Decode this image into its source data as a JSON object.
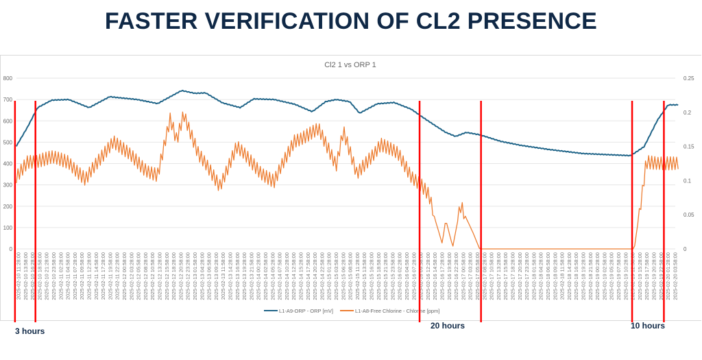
{
  "slide": {
    "title": "FASTER VERIFICATION OF CL2 PRESENCE",
    "annotations": [
      "3 hours",
      "20 hours",
      "10 hours"
    ],
    "marker_color": "#ff0000"
  },
  "chart_data": {
    "type": "line",
    "title": "Cl2 1 vs ORP 1",
    "xlabel": "",
    "ylabel_left": "",
    "ylabel_right": "",
    "ylim_left": [
      0,
      800
    ],
    "yticks_left": [
      "0",
      "100",
      "200",
      "300",
      "400",
      "500",
      "600",
      "700",
      "800"
    ],
    "ylim_right": [
      0,
      0.25
    ],
    "yticks_right": [
      "0",
      "0.05",
      "0.1",
      "0.15",
      "0.2",
      "0.25"
    ],
    "grid": true,
    "legend_position": "bottom",
    "x_labels": [
      "2025-02-10 11:28:00",
      "2025-02-10 13:58:00",
      "2025-02-10 16:28:00",
      "2025-02-10 18:58:00",
      "2025-02-10 21:28:00",
      "2025-02-10 23:58:00",
      "2025-02-11 02:28:00",
      "2025-02-11 04:58:00",
      "2025-02-11 07:28:00",
      "2025-02-11 09:58:00",
      "2025-02-11 12:28:00",
      "2025-02-11 14:58:00",
      "2025-02-11 17:28:00",
      "2025-02-11 19:58:00",
      "2025-02-11 22:28:00",
      "2025-02-12 00:58:00",
      "2025-02-12 03:28:00",
      "2025-02-12 05:58:00",
      "2025-02-12 08:28:00",
      "2025-02-12 10:58:00",
      "2025-02-12 13:28:00",
      "2025-02-12 15:58:00",
      "2025-02-12 18:28:00",
      "2025-02-12 20:58:00",
      "2025-02-12 23:28:00",
      "2025-02-13 01:58:00",
      "2025-02-13 04:28:00",
      "2025-02-13 06:58:00",
      "2025-02-13 09:28:00",
      "2025-02-13 11:58:00",
      "2025-02-13 14:28:00",
      "2025-02-13 16:58:00",
      "2025-02-13 19:28:00",
      "2025-02-13 21:58:00",
      "2025-02-14 00:28:00",
      "2025-02-14 02:58:00",
      "2025-02-14 05:28:00",
      "2025-02-14 07:58:00",
      "2025-02-14 10:28:00",
      "2025-02-14 12:58:00",
      "2025-02-14 15:28:00",
      "2025-02-14 17:58:00",
      "2025-02-14 20:28:00",
      "2025-02-14 22:58:00",
      "2025-02-15 01:28:00",
      "2025-02-15 03:58:00",
      "2025-02-15 06:28:00",
      "2025-02-15 08:58:00",
      "2025-02-15 11:28:00",
      "2025-02-15 13:58:00",
      "2025-02-15 16:28:00",
      "2025-02-15 18:58:00",
      "2025-02-15 21:28:00",
      "2025-02-15 23:58:00",
      "2025-02-16 02:28:00",
      "2025-02-16 04:58:00",
      "2025-02-16 07:28:00",
      "2025-02-16 09:58:00",
      "2025-02-16 12:28:00",
      "2025-02-16 14:58:00",
      "2025-02-16 17:28:00",
      "2025-02-16 19:58:00",
      "2025-02-16 22:28:00",
      "2025-02-17 00:58:00",
      "2025-02-17 03:28:00",
      "2025-02-17 05:58:00",
      "2025-02-17 08:28:00",
      "2025-02-17 10:58:00",
      "2025-02-17 13:28:00",
      "2025-02-17 15:58:00",
      "2025-02-17 18:28:00",
      "2025-02-17 20:58:00",
      "2025-02-17 23:28:00",
      "2025-02-18 01:58:00",
      "2025-02-18 04:28:00",
      "2025-02-18 06:58:00",
      "2025-02-18 09:28:00",
      "2025-02-18 11:58:00",
      "2025-02-18 14:28:00",
      "2025-02-18 16:58:00",
      "2025-02-18 19:28:00",
      "2025-02-18 21:58:00",
      "2025-02-19 00:28:00",
      "2025-02-19 02:58:00",
      "2025-02-19 05:28:00",
      "2025-02-19 07:58:00",
      "2025-02-19 10:28:00",
      "2025-02-19 12:58:00",
      "2025-02-19 15:28:00",
      "2025-02-19 17:58:00",
      "2025-02-19 20:28:00",
      "2025-02-19 22:58:00",
      "2025-02-20 01:28:00",
      "2025-02-20 03:58:00"
    ],
    "series": [
      {
        "name": "L1-A9-ORP - ORP [mV]",
        "axis": "left",
        "color": "#1f6488",
        "points": [
          [
            -0.3,
            482
          ],
          [
            1.3,
            572
          ],
          [
            2.7,
            662
          ],
          [
            4.7,
            697
          ],
          [
            7.1,
            700
          ],
          [
            10,
            662
          ],
          [
            12.9,
            713
          ],
          [
            16.8,
            700
          ],
          [
            19.7,
            681
          ],
          [
            23.1,
            742
          ],
          [
            25,
            729
          ],
          [
            26.5,
            731
          ],
          [
            28.9,
            684
          ],
          [
            31.4,
            662
          ],
          [
            33.3,
            703
          ],
          [
            36.2,
            700
          ],
          [
            39.1,
            678
          ],
          [
            41.6,
            643
          ],
          [
            43.5,
            690
          ],
          [
            45,
            700
          ],
          [
            46.9,
            690
          ],
          [
            48.3,
            636
          ],
          [
            50.8,
            680
          ],
          [
            53.2,
            686
          ],
          [
            55.6,
            655
          ],
          [
            57.1,
            620
          ],
          [
            59,
            578
          ],
          [
            60.5,
            546
          ],
          [
            61.9,
            527
          ],
          [
            63.4,
            546
          ],
          [
            65.3,
            535
          ],
          [
            68.3,
            504
          ],
          [
            71.2,
            485
          ],
          [
            75.1,
            466
          ],
          [
            79.9,
            447
          ],
          [
            86.7,
            437
          ],
          [
            88.6,
            479
          ],
          [
            90.5,
            604
          ],
          [
            92,
            675
          ],
          [
            93.5,
            675
          ]
        ]
      },
      {
        "name": "L1-A8-Free Chlorine - Chlorine [ppm]",
        "axis": "right",
        "color": "#ed7d31",
        "points": [
          [
            -0.3,
            0.103
          ],
          [
            1.3,
            0.128
          ],
          [
            4.7,
            0.133
          ],
          [
            7.1,
            0.128
          ],
          [
            9.5,
            0.101
          ],
          [
            13.4,
            0.159
          ],
          [
            17.8,
            0.118
          ],
          [
            19.7,
            0.108
          ],
          [
            21.5,
            0.189
          ],
          [
            22.4,
            0.159
          ],
          [
            23.4,
            0.199
          ],
          [
            25.5,
            0.138
          ],
          [
            28.5,
            0.093
          ],
          [
            30.9,
            0.149
          ],
          [
            34.3,
            0.113
          ],
          [
            36.2,
            0.098
          ],
          [
            39.1,
            0.159
          ],
          [
            42.5,
            0.174
          ],
          [
            45,
            0.124
          ],
          [
            46,
            0.174
          ],
          [
            47.9,
            0.108
          ],
          [
            51.3,
            0.154
          ],
          [
            53.8,
            0.138
          ],
          [
            55.6,
            0.108
          ],
          [
            57.1,
            0.093
          ],
          [
            58.1,
            0.078
          ],
          [
            59,
            0.043
          ],
          [
            60,
            0.008
          ],
          [
            60.5,
            0.043
          ],
          [
            61.5,
            0.003
          ],
          [
            62.6,
            0.063
          ],
          [
            64.4,
            0.023
          ],
          [
            65.3,
            0
          ],
          [
            86.7,
            0
          ],
          [
            87.2,
            0
          ],
          [
            88.2,
            0.073
          ],
          [
            88.9,
            0.128
          ],
          [
            90.6,
            0.123
          ],
          [
            93.5,
            0.128
          ]
        ]
      }
    ],
    "markers_x_index": [
      -0.5,
      2.4,
      56.8,
      65.5,
      86.9,
      91.4
    ]
  }
}
